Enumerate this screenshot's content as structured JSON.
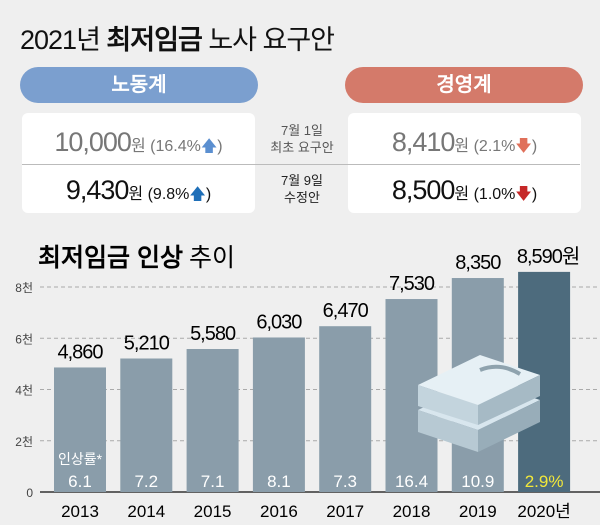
{
  "header": {
    "title_num": "2021년",
    "title_bold": "최저임금",
    "title_rest": "노사 요구안"
  },
  "labor": {
    "label": "노동계",
    "color": "#7b9fcf",
    "first": {
      "value": "10,000",
      "unit": "원",
      "pct": "(16.4%",
      "close": ")",
      "arrow": "up"
    },
    "revised": {
      "value": "9,430",
      "unit": "원",
      "pct": "(9.8%",
      "close": ")",
      "arrow": "up"
    }
  },
  "business": {
    "label": "경영계",
    "color": "#d47a6a",
    "first": {
      "value": "8,410",
      "unit": "원",
      "pct": "(2.1%",
      "close": ")",
      "arrow": "down"
    },
    "revised": {
      "value": "8,500",
      "unit": "원",
      "pct": "(1.0%",
      "close": ")",
      "arrow": "down"
    }
  },
  "stages": {
    "first_l1": "7월 1일",
    "first_l2": "최초 요구안",
    "revised_l1": "7월 9일",
    "revised_l2": "수정안"
  },
  "chart_data": {
    "type": "bar",
    "title_bold": "최저임금 인상",
    "title_rest": "추이",
    "categories": [
      "2013",
      "2014",
      "2015",
      "2016",
      "2017",
      "2018",
      "2019",
      "2020년"
    ],
    "values": [
      4860,
      5210,
      5580,
      6030,
      6470,
      7530,
      8350,
      8590
    ],
    "value_labels": [
      "4,860",
      "5,210",
      "5,580",
      "6,030",
      "6,470",
      "7,530",
      "8,350",
      "8,590원"
    ],
    "rate_label": "인상률*",
    "rates": [
      "6.1",
      "7.2",
      "7.1",
      "8.1",
      "7.3",
      "16.4",
      "10.9",
      "2.9%"
    ],
    "yticks": [
      {
        "v": 0,
        "label": "0"
      },
      {
        "v": 2000,
        "label": "2천"
      },
      {
        "v": 4000,
        "label": "4천"
      },
      {
        "v": 6000,
        "label": "6천"
      },
      {
        "v": 8000,
        "label": "8천"
      }
    ],
    "ylim": [
      0,
      9000
    ],
    "grid": true,
    "bar_color": "#8a9daa",
    "highlight_color": "#4d6b7d",
    "highlight_rate_color": "#f2e83a"
  }
}
